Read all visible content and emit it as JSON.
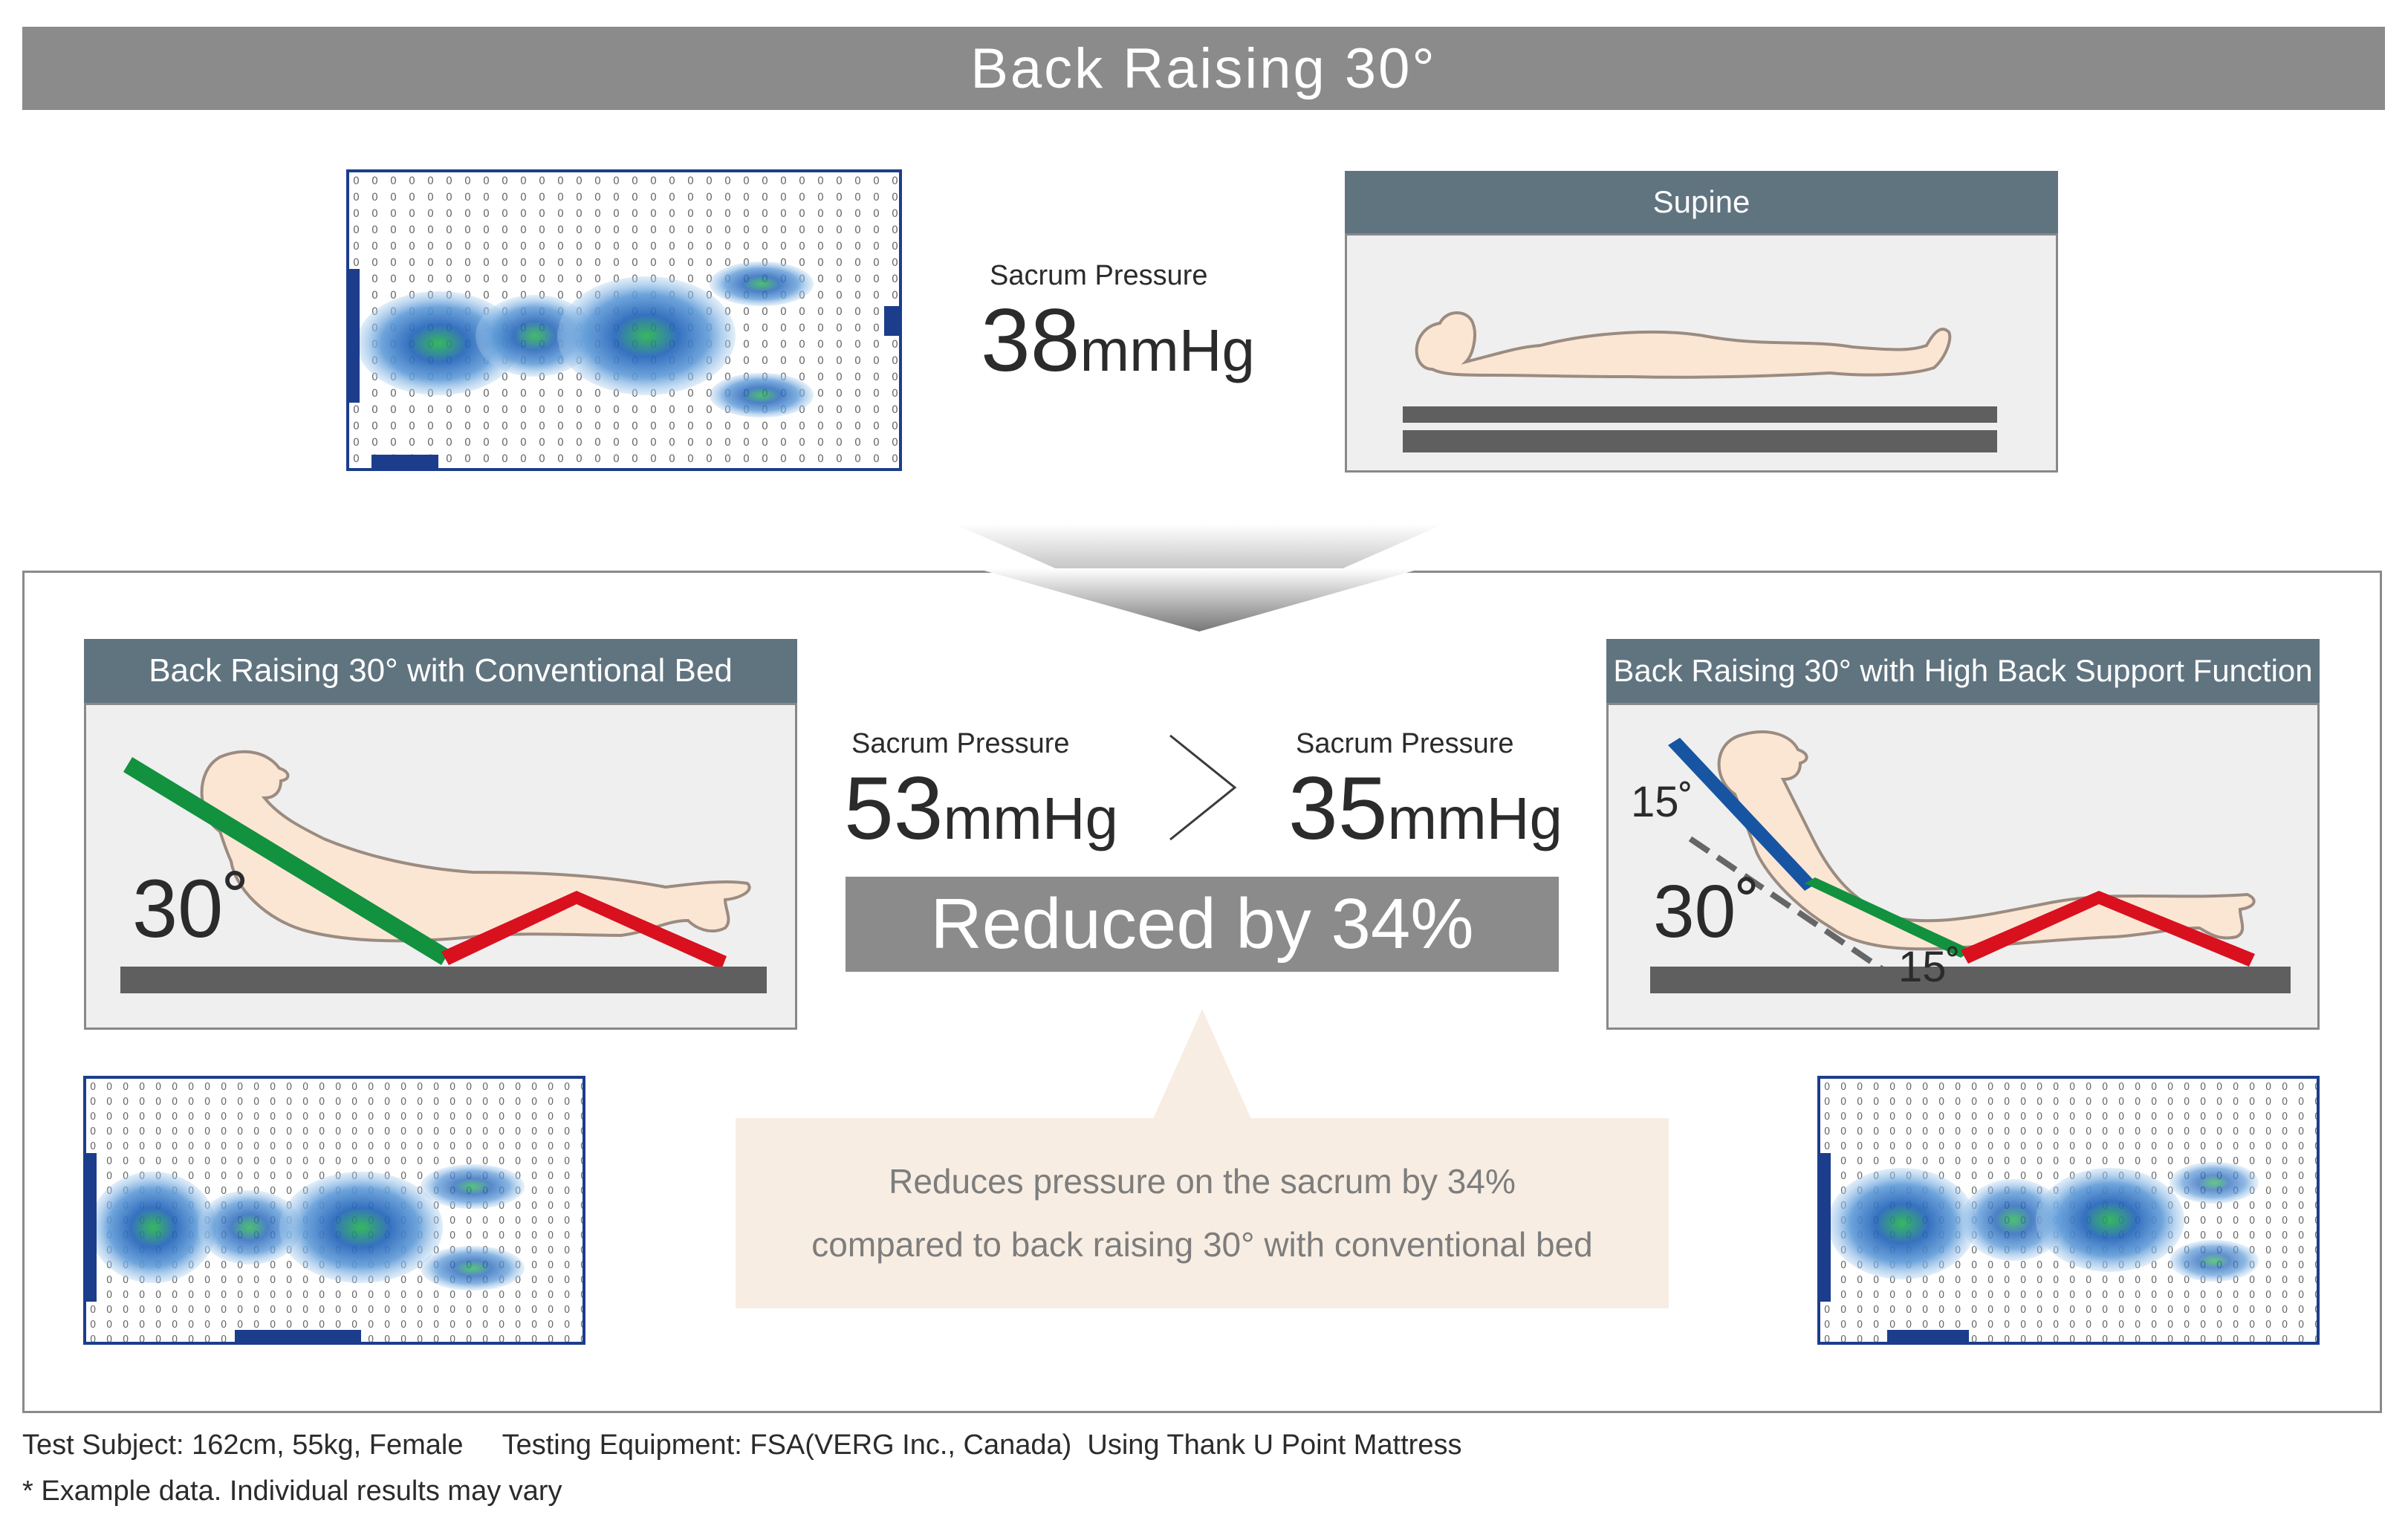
{
  "header": {
    "title": "Back Raising 30°"
  },
  "top": {
    "pressure_label": "Sacrum Pressure",
    "pressure_value": "38",
    "pressure_unit": "mmHg",
    "supine_title": "Supine"
  },
  "conventional": {
    "title": "Back Raising 30° with Conventional Bed",
    "angle": "30˚",
    "pressure_label": "Sacrum Pressure",
    "pressure_value": "53",
    "pressure_unit": "mmHg"
  },
  "high_back": {
    "title": "Back Raising 30° with High Back Support Function",
    "angle_main": "30˚",
    "angle_upper": "15˚",
    "angle_lower": "15˚",
    "pressure_label": "Sacrum Pressure",
    "pressure_value": "35",
    "pressure_unit": "mmHg"
  },
  "comparison": {
    "reduced_text": "Reduced by 34%",
    "note_line1": "Reduces pressure on the sacrum by 34%",
    "note_line2": "compared to back raising 30° with conventional bed"
  },
  "footer": {
    "line1": "Test Subject: 162cm, 55kg, Female     Testing Equipment: FSA(VERG Inc., Canada)  Using Thank U Point Mattress",
    "line2": "* Example data. Individual results may vary"
  },
  "colors": {
    "header_gray": "#8b8b8b",
    "panel_head": "#607480",
    "back_green": "#12913e",
    "leg_red": "#d9101e",
    "upper_blue": "#1755a3",
    "skin": "#fbe6d4",
    "map_border": "#1c3d8c"
  }
}
